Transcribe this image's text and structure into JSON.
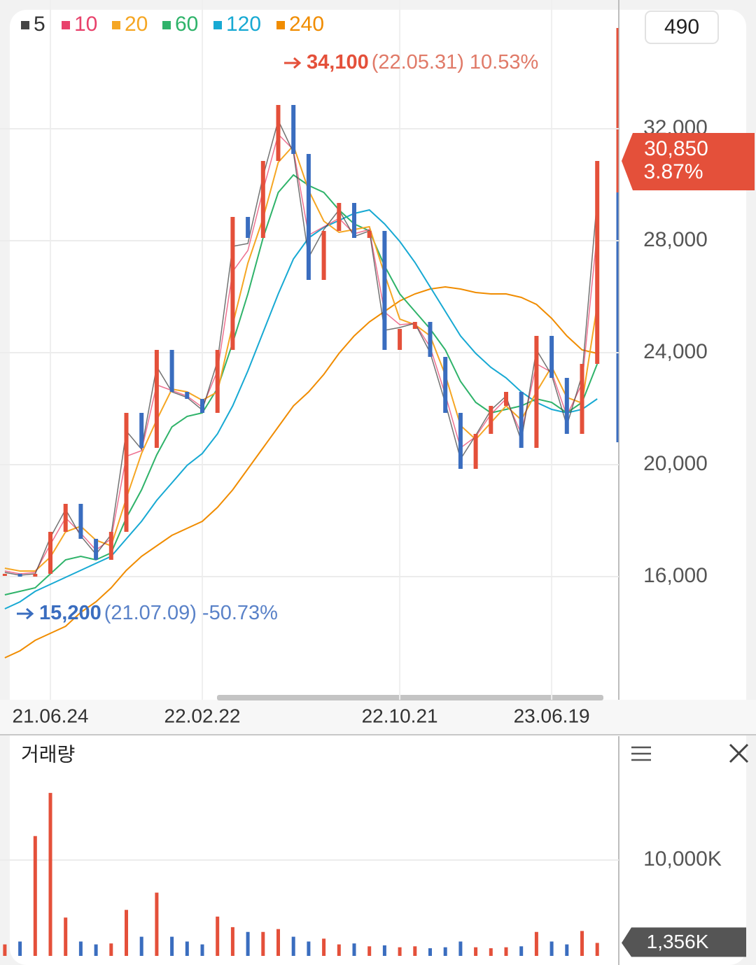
{
  "chart_data": [
    {
      "type": "stock",
      "counter": "490",
      "categories": [
        null,
        null,
        null,
        "21.06.24",
        null,
        null,
        null,
        null,
        null,
        null,
        null,
        null,
        null,
        "22.02.22",
        null,
        null,
        null,
        null,
        null,
        null,
        null,
        null,
        null,
        null,
        null,
        null,
        "22.10.21",
        null,
        null,
        null,
        null,
        null,
        null,
        null,
        null,
        null,
        "23.06.19",
        null,
        null,
        null
      ],
      "close": [
        16100,
        16000,
        16100,
        17600,
        18600,
        17350,
        16600,
        17600,
        21850,
        20600,
        24100,
        22600,
        22350,
        21850,
        24100,
        28850,
        28100,
        30850,
        32850,
        31100,
        26600,
        28350,
        29350,
        28100,
        28350,
        24100,
        24850,
        25100,
        23850,
        21850,
        19850,
        21100,
        22100,
        22600,
        20600,
        24600,
        23100,
        21100,
        23600,
        30850
      ],
      "up_color": "#e4503a",
      "down_color": "#3a6dbf",
      "series": [
        {
          "name": "5",
          "color": "#444444",
          "values": [
            16150,
            16050,
            16100,
            17400,
            18400,
            17450,
            16800,
            17500,
            21200,
            20550,
            23500,
            22600,
            22400,
            21950,
            23700,
            27800,
            27900,
            30300,
            32300,
            31150,
            27400,
            28400,
            29100,
            28150,
            28350,
            24800,
            24900,
            25050,
            24000,
            22200,
            20200,
            21050,
            21950,
            22450,
            20850,
            24100,
            23200,
            21400,
            23200,
            29500
          ]
        },
        {
          "name": "10",
          "color": "#e8416b",
          "values": [
            16200,
            16100,
            16150,
            17150,
            18100,
            17550,
            16950,
            17350,
            20300,
            20500,
            22850,
            22650,
            22450,
            22050,
            23350,
            26900,
            27650,
            29800,
            31800,
            31250,
            28200,
            28500,
            28800,
            28250,
            28400,
            25450,
            25000,
            25050,
            24200,
            22500,
            20600,
            21000,
            21800,
            22350,
            21100,
            23600,
            23300,
            21750,
            22900,
            28300
          ]
        },
        {
          "name": "20",
          "color": "#f5a623",
          "values": [
            16300,
            16200,
            16200,
            16700,
            17600,
            17800,
            17300,
            17100,
            18800,
            20400,
            21600,
            22700,
            22600,
            22300,
            22600,
            25000,
            27200,
            28800,
            30800,
            31400,
            29800,
            28700,
            28300,
            28400,
            28500,
            26800,
            25200,
            25000,
            24600,
            23200,
            21400,
            20900,
            21500,
            22100,
            21600,
            22600,
            23500,
            22400,
            22200,
            25700
          ]
        },
        {
          "name": "60",
          "color": "#2fb36a",
          "values": [
            15350,
            15475,
            15600,
            16100,
            16600,
            16725,
            16600,
            16850,
            18100,
            19100,
            20350,
            21350,
            21725,
            21850,
            22725,
            24350,
            26100,
            28100,
            29725,
            30350,
            29975,
            29725,
            29100,
            28600,
            28350,
            27100,
            26100,
            25475,
            24850,
            24100,
            22975,
            22225,
            21850,
            21975,
            22100,
            22350,
            22225,
            21850,
            22225,
            23600
          ]
        },
        {
          "name": "120",
          "color": "#17a9d3",
          "values": [
            14850,
            15100,
            15475,
            15725,
            15975,
            16225,
            16475,
            16725,
            17350,
            17975,
            18725,
            19350,
            19975,
            20400,
            21100,
            22100,
            23350,
            24725,
            26100,
            27350,
            28100,
            28475,
            28725,
            28975,
            29100,
            28600,
            27975,
            27225,
            26350,
            25475,
            24600,
            23975,
            23475,
            23100,
            22600,
            22225,
            21975,
            21850,
            21975,
            22350
          ]
        },
        {
          "name": "240",
          "color": "#f08c00",
          "values": [
            13100,
            13350,
            13725,
            13975,
            14225,
            14725,
            15100,
            15600,
            16225,
            16725,
            17100,
            17475,
            17725,
            17975,
            18475,
            19100,
            19850,
            20600,
            21350,
            22100,
            22600,
            23225,
            23975,
            24600,
            25100,
            25475,
            25850,
            26100,
            26275,
            26350,
            26275,
            26150,
            26100,
            26100,
            25975,
            25725,
            25225,
            24600,
            24100,
            23975
          ]
        }
      ],
      "ylim": [
        11600,
        36600
      ],
      "yticks": [
        {
          "value": 16000,
          "label": "16,000"
        },
        {
          "value": 20000,
          "label": "20,000"
        },
        {
          "value": 24000,
          "label": "24,000"
        },
        {
          "value": 28000,
          "label": "28,000"
        },
        {
          "value": 32000,
          "label": "32,000"
        }
      ],
      "grid": true,
      "high": {
        "value": 34100,
        "label": "34,100",
        "date": "(22.05.31)",
        "change": "10.53%"
      },
      "low": {
        "value": 15200,
        "label": "15,200",
        "date": "(21.07.09)",
        "change": "-50.73%"
      },
      "last": {
        "value": 30850,
        "label": "30,850",
        "change": "3.87%"
      }
    },
    {
      "type": "bar",
      "title": "거래량",
      "values": [
        1200,
        1500,
        12500,
        17000,
        4000,
        1500,
        1200,
        1300,
        4800,
        2000,
        6600,
        2000,
        1500,
        1200,
        4100,
        3000,
        2500,
        2500,
        2800,
        2000,
        1500,
        1800,
        1200,
        1300,
        1000,
        1100,
        900,
        1000,
        800,
        900,
        1500,
        900,
        800,
        900,
        1000,
        2500,
        1500,
        1200,
        2600,
        1356
      ],
      "last_label": "1,356K",
      "ylim": [
        0,
        22700
      ],
      "yticks": [
        {
          "value": 10000,
          "label": "10,000K"
        }
      ],
      "grid": true
    }
  ]
}
